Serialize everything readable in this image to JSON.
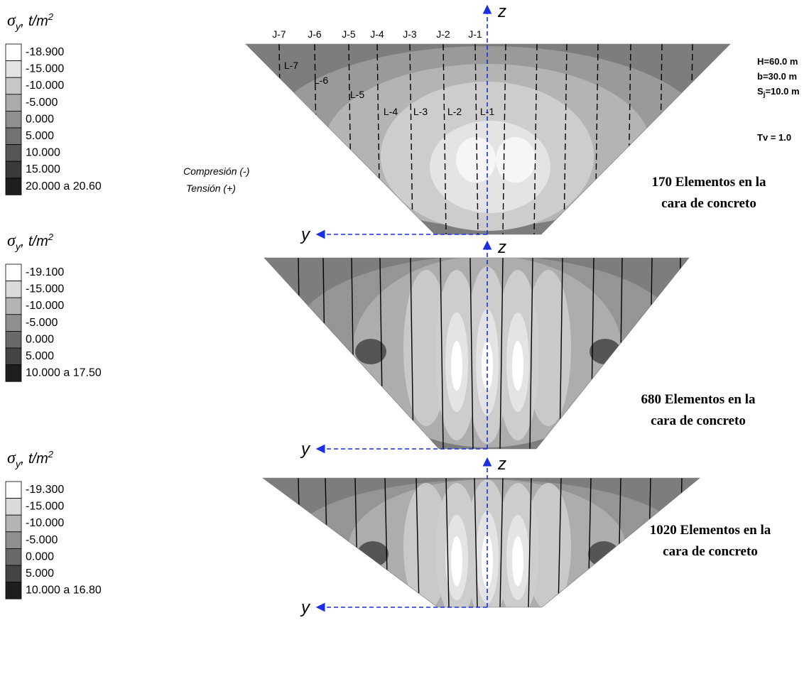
{
  "legends": [
    {
      "symbol": "σ",
      "subscript": "y",
      "unit": ", t/m",
      "unit_exponent": "2",
      "entries": [
        "-18.900",
        "-15.000",
        "-10.000",
        "-5.000",
        "0.000",
        "5.000",
        "10.000",
        "15.000",
        "20.000  a  20.60"
      ]
    },
    {
      "symbol": "σ",
      "subscript": "y",
      "unit": ", t/m",
      "unit_exponent": "2",
      "entries": [
        "-19.100",
        "-15.000",
        "-10.000",
        "-5.000",
        "0.000",
        "5.000",
        "10.000  a  17.50"
      ]
    },
    {
      "symbol": "σ",
      "subscript": "y",
      "unit": ", t/m",
      "unit_exponent": "2",
      "entries": [
        "-19.300",
        "-15.000",
        "-10.000",
        "-5.000",
        "0.000",
        "5.000",
        "10.000  a  16.80"
      ]
    }
  ],
  "panels": [
    {
      "caption": [
        "170  Elementos en la",
        "cara de concreto"
      ],
      "axis_y": "y",
      "axis_z": "z"
    },
    {
      "caption": [
        "680  Elementos en la",
        "cara de concreto"
      ],
      "axis_y": "y",
      "axis_z": "z"
    },
    {
      "caption": [
        "1020  Elementos en la",
        "cara de concreto"
      ],
      "axis_y": "y",
      "axis_z": "z"
    }
  ],
  "joints": [
    "J-7",
    "J-6",
    "J-5",
    "J-4",
    "J-3",
    "J-2",
    "J-1"
  ],
  "slabs": [
    "L-7",
    "L-6",
    "L-5",
    "L-4",
    "L-3",
    "L-2",
    "L-1"
  ],
  "notes": [
    "Compresión (-)",
    "Tensión (+)"
  ],
  "params": {
    "height": "H=60.0 m",
    "width": "b=30.0 m",
    "spacing_base": "S",
    "spacing_sub": "j",
    "spacing_rest": "=10.0 m",
    "tv": "Tv = 1.0"
  }
}
